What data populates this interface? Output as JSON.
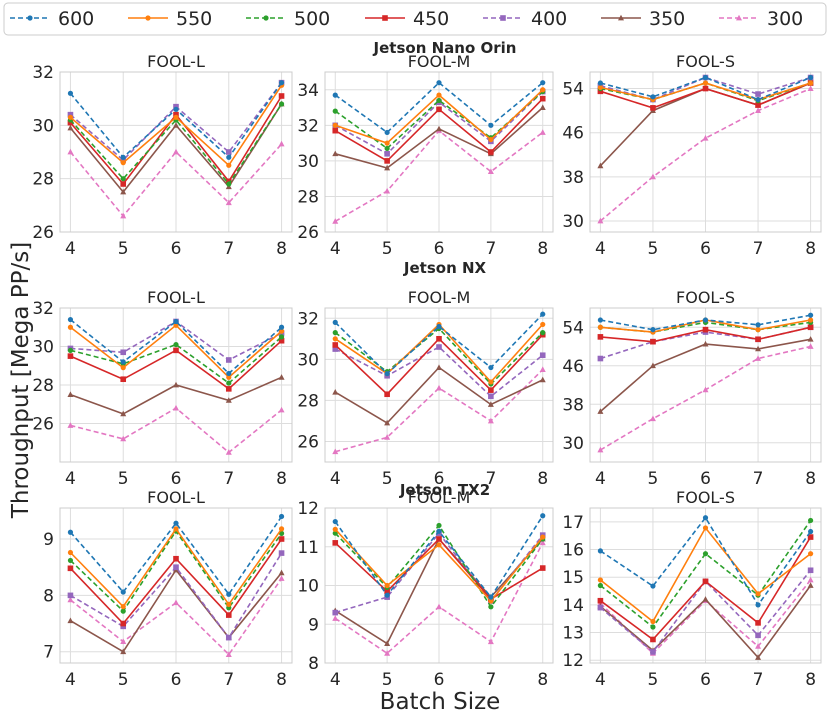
{
  "chart_data": {
    "type": "line",
    "xlabel": "Batch Size",
    "ylabel": "Throughput [Mega PP/s]",
    "x": [
      4,
      5,
      6,
      7,
      8
    ],
    "legend": [
      {
        "name": "600",
        "color": "#1f77b4",
        "dash": "dashed",
        "marker": "circle"
      },
      {
        "name": "550",
        "color": "#ff7f0e",
        "dash": "solid",
        "marker": "circle"
      },
      {
        "name": "500",
        "color": "#2ca02c",
        "dash": "dashed",
        "marker": "circle"
      },
      {
        "name": "450",
        "color": "#d62728",
        "dash": "solid",
        "marker": "square"
      },
      {
        "name": "400",
        "color": "#9467bd",
        "dash": "dashed",
        "marker": "square"
      },
      {
        "name": "350",
        "color": "#8c564b",
        "dash": "solid",
        "marker": "triangle"
      },
      {
        "name": "300",
        "color": "#e377c2",
        "dash": "dashed",
        "marker": "triangle"
      }
    ],
    "rows": [
      {
        "title": "Jetson Nano Orin",
        "panels": [
          {
            "title": "FOOL-L",
            "ylim": [
              26,
              32
            ],
            "yticks": [
              26,
              28,
              30,
              32
            ],
            "series": [
              [
                31.2,
                28.8,
                30.6,
                28.8,
                31.6
              ],
              [
                30.3,
                28.6,
                30.3,
                28.5,
                31.5
              ],
              [
                30.2,
                28.0,
                30.2,
                27.8,
                30.8
              ],
              [
                30.1,
                27.8,
                30.4,
                27.9,
                31.1
              ],
              [
                30.4,
                28.7,
                30.7,
                29.0,
                31.6
              ],
              [
                29.9,
                27.5,
                30.0,
                27.7,
                30.8
              ],
              [
                29.0,
                26.6,
                29.0,
                27.1,
                29.3
              ]
            ]
          },
          {
            "title": "FOOL-M",
            "ylim": [
              26,
              35
            ],
            "yticks": [
              26,
              28,
              30,
              32,
              34
            ],
            "series": [
              [
                33.7,
                31.6,
                34.4,
                32.0,
                34.4
              ],
              [
                32.0,
                31.0,
                33.7,
                31.2,
                34.0
              ],
              [
                32.8,
                30.7,
                33.4,
                31.3,
                33.9
              ],
              [
                31.7,
                30.0,
                32.9,
                30.5,
                33.5
              ],
              [
                32.0,
                30.4,
                33.3,
                31.1,
                33.9
              ],
              [
                30.4,
                29.6,
                31.8,
                30.4,
                33.0
              ],
              [
                26.6,
                28.3,
                31.7,
                29.4,
                31.6
              ]
            ]
          },
          {
            "title": "FOOL-S",
            "ylim": [
              28,
              57
            ],
            "yticks": [
              30,
              38,
              46,
              54
            ],
            "series": [
              [
                55.0,
                52.5,
                56.0,
                52.0,
                56.0
              ],
              [
                54.2,
                52.0,
                55.0,
                52.0,
                55.0
              ],
              [
                54.0,
                52.0,
                55.0,
                51.8,
                55.0
              ],
              [
                53.5,
                50.5,
                54.0,
                51.0,
                55.0
              ],
              [
                54.5,
                52.0,
                56.0,
                53.0,
                56.0
              ],
              [
                40.0,
                50.0,
                54.0,
                51.0,
                55.0
              ],
              [
                30.0,
                38.0,
                45.0,
                50.0,
                54.0
              ]
            ]
          }
        ]
      },
      {
        "title": "Jetson NX",
        "panels": [
          {
            "title": "FOOL-L",
            "ylim": [
              24,
              32
            ],
            "yticks": [
              26,
              28,
              30,
              32
            ],
            "series": [
              [
                31.4,
                29.2,
                31.3,
                28.6,
                31.0
              ],
              [
                31.0,
                28.9,
                31.1,
                28.4,
                30.8
              ],
              [
                29.8,
                29.1,
                30.1,
                28.1,
                30.5
              ],
              [
                29.5,
                28.3,
                29.8,
                27.8,
                30.3
              ],
              [
                29.9,
                29.7,
                31.3,
                29.3,
                30.7
              ],
              [
                27.5,
                26.5,
                28.0,
                27.2,
                28.4
              ],
              [
                25.9,
                25.2,
                26.8,
                24.5,
                26.7
              ]
            ]
          },
          {
            "title": "FOOL-M",
            "ylim": [
              25,
              32.5
            ],
            "yticks": [
              26,
              28,
              30,
              32
            ],
            "series": [
              [
                31.8,
                29.3,
                31.6,
                29.6,
                32.2
              ],
              [
                31.0,
                29.3,
                31.7,
                28.9,
                31.7
              ],
              [
                31.3,
                29.4,
                31.5,
                28.8,
                31.3
              ],
              [
                30.7,
                28.3,
                31.0,
                28.5,
                31.2
              ],
              [
                30.5,
                29.2,
                30.6,
                28.2,
                30.2
              ],
              [
                28.4,
                26.9,
                29.6,
                27.8,
                29.0
              ],
              [
                25.5,
                26.2,
                28.6,
                27.0,
                29.5
              ]
            ]
          },
          {
            "title": "FOOL-S",
            "ylim": [
              26,
              58
            ],
            "yticks": [
              30,
              38,
              46,
              54
            ],
            "series": [
              [
                55.5,
                53.5,
                55.5,
                54.5,
                56.5
              ],
              [
                54.0,
                53.0,
                55.5,
                53.5,
                55.5
              ],
              [
                54.0,
                53.0,
                55.0,
                53.5,
                55.0
              ],
              [
                52.0,
                51.0,
                53.5,
                51.5,
                54.0
              ],
              [
                47.5,
                51.0,
                53.0,
                51.5,
                54.0
              ],
              [
                36.5,
                46.0,
                50.5,
                49.5,
                51.5
              ],
              [
                28.5,
                35.0,
                41.0,
                47.5,
                50.0
              ]
            ]
          }
        ]
      },
      {
        "title": "Jetson TX2",
        "panels": [
          {
            "title": "FOOL-L",
            "ylim": [
              6.8,
              9.55
            ],
            "yticks": [
              7,
              8,
              9
            ],
            "series": [
              [
                9.12,
                8.06,
                9.28,
                8.02,
                9.4
              ],
              [
                8.76,
                7.8,
                9.18,
                7.84,
                9.18
              ],
              [
                8.62,
                7.72,
                9.14,
                7.78,
                9.1
              ],
              [
                8.48,
                7.5,
                8.65,
                7.65,
                9.0
              ],
              [
                8.0,
                7.45,
                8.5,
                7.25,
                8.75
              ],
              [
                7.55,
                7.0,
                8.45,
                7.25,
                8.4
              ],
              [
                7.92,
                7.18,
                7.87,
                6.95,
                8.3
              ]
            ]
          },
          {
            "title": "FOOL-M",
            "ylim": [
              8,
              12
            ],
            "yticks": [
              8,
              9,
              10,
              11,
              12
            ],
            "series": [
              [
                11.65,
                9.75,
                11.4,
                9.7,
                11.8
              ],
              [
                11.45,
                10.0,
                11.05,
                9.6,
                11.25
              ],
              [
                11.35,
                9.95,
                11.55,
                9.45,
                11.2
              ],
              [
                11.1,
                9.85,
                11.2,
                9.65,
                10.45
              ],
              [
                9.3,
                9.7,
                11.35,
                9.6,
                11.3
              ],
              [
                9.35,
                8.5,
                11.2,
                9.7,
                11.2
              ],
              [
                9.15,
                8.25,
                9.45,
                8.55,
                11.1
              ]
            ]
          },
          {
            "title": "FOOL-S",
            "ylim": [
              11.9,
              17.5
            ],
            "yticks": [
              12,
              13,
              14,
              15,
              16,
              17
            ],
            "series": [
              [
                15.95,
                14.68,
                17.15,
                14.0,
                16.65
              ],
              [
                14.9,
                13.4,
                16.78,
                14.4,
                15.85
              ],
              [
                14.7,
                13.2,
                15.85,
                14.35,
                17.05
              ],
              [
                14.15,
                12.75,
                14.85,
                13.35,
                16.45
              ],
              [
                13.9,
                12.3,
                14.85,
                12.9,
                15.25
              ],
              [
                13.95,
                12.35,
                14.2,
                12.1,
                14.7
              ],
              [
                14.05,
                12.25,
                14.15,
                12.5,
                14.9
              ]
            ]
          }
        ]
      }
    ]
  }
}
